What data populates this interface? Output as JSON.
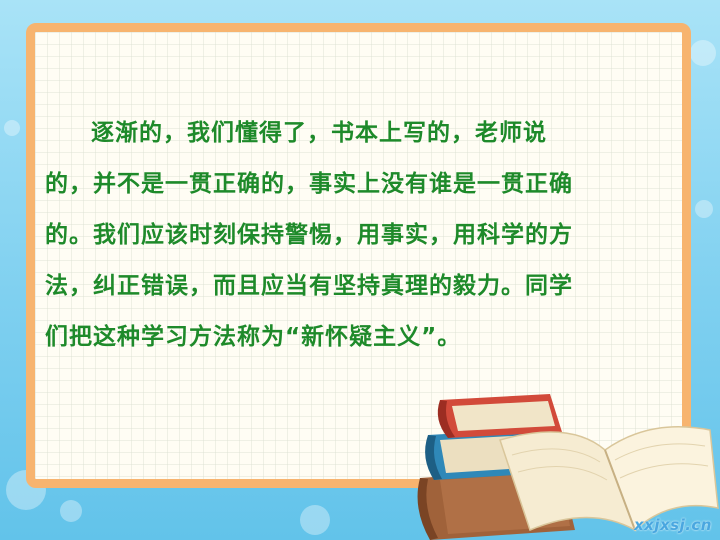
{
  "paragraph": {
    "lines": [
      "逐渐的，我们懂得了，书本上写的，老师说",
      "的，并不是一贯正确的，事实上没有谁是一贯正确",
      "的。我们应该时刻保持警惕，用事实，用科学的方",
      "法，纠正错误，而且应当有坚持真理的毅力。同学",
      "们把这种学习方法称为“新怀疑主义”。"
    ]
  },
  "watermark": "xxjxsj.cn",
  "colors": {
    "background": "#7fd0f0",
    "frame": "#f7b46f",
    "text": "#1e8a2a",
    "watermark": "#4aa7e0"
  },
  "illustration": {
    "icon": "book-stack-icon"
  }
}
